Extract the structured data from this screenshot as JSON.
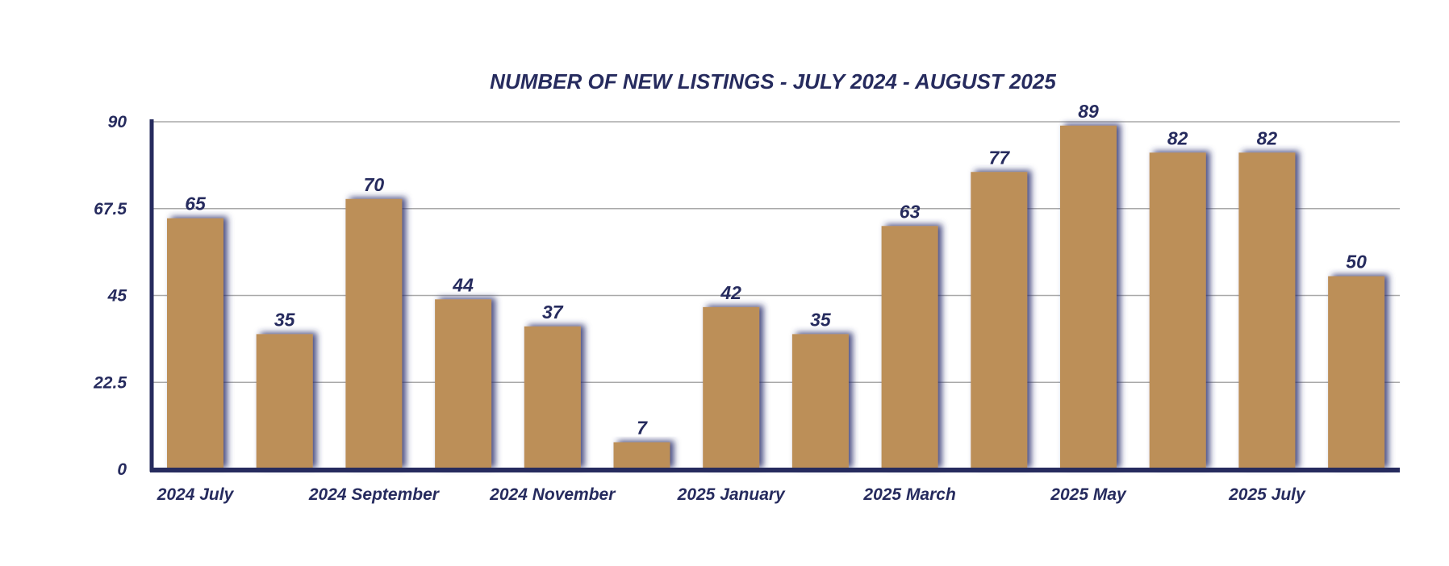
{
  "chart_data": {
    "type": "bar",
    "title": "NUMBER OF NEW LISTINGS - JULY 2024 - AUGUST 2025",
    "categories": [
      "2024 July",
      "",
      "2024 September",
      "",
      "2024 November",
      "",
      "2025 January",
      "",
      "2025 March",
      "",
      "2025 May",
      "",
      "2025 July",
      ""
    ],
    "values": [
      65,
      35,
      70,
      44,
      37,
      7,
      42,
      35,
      63,
      77,
      89,
      82,
      82,
      50
    ],
    "data_labels": [
      "65",
      "35",
      "70",
      "44",
      "37",
      "7",
      "42",
      "35",
      "63",
      "77",
      "89",
      "82",
      "82",
      "50"
    ],
    "y_ticks": [
      "0",
      "22.5",
      "45",
      "67.5",
      "90"
    ],
    "ylim": [
      0,
      90
    ],
    "xlabel": "",
    "ylabel": "",
    "grid": true,
    "legend": "none",
    "colors": {
      "bar": "#bc8f59",
      "axis": "#262b5e",
      "text": "#262b5e",
      "grid": "#a9a9a9",
      "shadow": "#2a2f6e"
    }
  }
}
